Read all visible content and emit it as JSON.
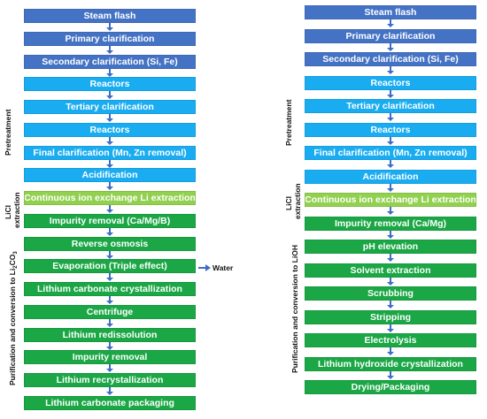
{
  "colors": {
    "steam": "#4472c4",
    "pretreat": "#1aacf0",
    "ion": "#92d050",
    "purify": "#1ba745",
    "arrow": "#3f6cc7"
  },
  "left": {
    "steps": [
      {
        "label": "Steam flash",
        "stage": "steam"
      },
      {
        "label": "Primary clarification",
        "stage": "steam"
      },
      {
        "label": "Secondary clarification (Si, Fe)",
        "stage": "steam"
      },
      {
        "label": "Reactors",
        "stage": "pretreat"
      },
      {
        "label": "Tertiary clarification",
        "stage": "pretreat"
      },
      {
        "label": "Reactors",
        "stage": "pretreat"
      },
      {
        "label": "Final clarification (Mn, Zn removal)",
        "stage": "pretreat"
      },
      {
        "label": "Acidification",
        "stage": "pretreat"
      },
      {
        "label": "Continuous ion exchange Li extraction",
        "stage": "ion"
      },
      {
        "label": "Impurity removal (Ca/Mg/B)",
        "stage": "purify"
      },
      {
        "label": "Reverse osmosis",
        "stage": "purify"
      },
      {
        "label": "Evaporation (Triple effect)",
        "stage": "purify"
      },
      {
        "label": "Lithium carbonate crystallization",
        "stage": "purify"
      },
      {
        "label": "Centrifuge",
        "stage": "purify"
      },
      {
        "label": "Lithium redissolution",
        "stage": "purify"
      },
      {
        "label": "Impurity removal",
        "stage": "purify"
      },
      {
        "label": "Lithium recrystallization",
        "stage": "purify"
      },
      {
        "label": "Lithium carbonate packaging",
        "stage": "purify"
      }
    ],
    "side_labels": {
      "pretreatment": "Pretreatment",
      "licl_line1": "LiCl",
      "licl_line2": "extraction",
      "purification_pre": "Purification and conversion to Li",
      "purification_sub1": "2",
      "purification_mid": "CO",
      "purification_sub2": "3"
    },
    "water_label": "Water"
  },
  "right": {
    "steps": [
      {
        "label": "Steam flash",
        "stage": "steam"
      },
      {
        "label": "Primary clarification",
        "stage": "steam"
      },
      {
        "label": "Secondary clarification (Si, Fe)",
        "stage": "steam"
      },
      {
        "label": "Reactors",
        "stage": "pretreat"
      },
      {
        "label": "Tertiary clarification",
        "stage": "pretreat"
      },
      {
        "label": "Reactors",
        "stage": "pretreat"
      },
      {
        "label": "Final clarification (Mn, Zn removal)",
        "stage": "pretreat"
      },
      {
        "label": "Acidification",
        "stage": "pretreat"
      },
      {
        "label": "Continuous ion exchange Li extraction",
        "stage": "ion"
      },
      {
        "label": "Impurity removal (Ca/Mg)",
        "stage": "purify"
      },
      {
        "label": "pH elevation",
        "stage": "purify"
      },
      {
        "label": "Solvent extraction",
        "stage": "purify"
      },
      {
        "label": "Scrubbing",
        "stage": "purify"
      },
      {
        "label": "Stripping",
        "stage": "purify"
      },
      {
        "label": "Electrolysis",
        "stage": "purify"
      },
      {
        "label": "Lithium hydroxide crystallization",
        "stage": "purify"
      },
      {
        "label": "Drying/Packaging",
        "stage": "purify"
      }
    ],
    "side_labels": {
      "pretreatment": "Pretreatment",
      "licl_line1": "LiCl",
      "licl_line2": "extraction",
      "purification": "Purification and conversion to LiOH"
    }
  }
}
